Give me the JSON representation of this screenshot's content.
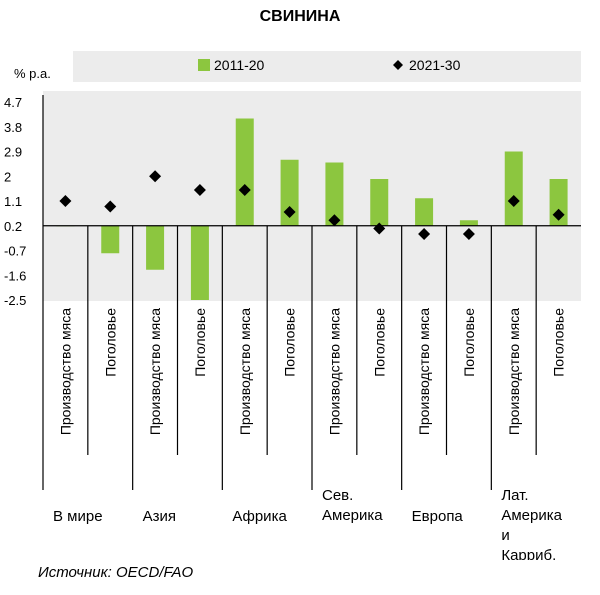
{
  "chart_data": {
    "type": "bar",
    "title": "СВИНИНА",
    "ylabel": "% p.a.",
    "ylim": [
      -2.5,
      4.7
    ],
    "yticks": [
      "4.7",
      "3.8",
      "2.9",
      "2",
      "1.1",
      "0.2",
      "-0.7",
      "-1.6",
      "-2.5"
    ],
    "grid": false,
    "legend_position": "top",
    "groups": [
      "В мире",
      "Азия",
      "Африка",
      "Сев. Америка",
      "Европа",
      "Лат. Америка и Карриб. бассейн"
    ],
    "categories": [
      "Производство мяса",
      "Поголовье",
      "Производство мяса",
      "Поголовье",
      "Производство мяса",
      "Поголовье",
      "Производство мяса",
      "Поголовье",
      "Производство мяса",
      "Поголовье",
      "Производство мяса",
      "Поголовье"
    ],
    "series": [
      {
        "name": "2011-20",
        "type": "bar",
        "color": "#8cc63f",
        "values": [
          0.2,
          -0.8,
          -1.4,
          -2.5,
          4.1,
          2.6,
          2.5,
          1.9,
          1.2,
          0.4,
          2.9,
          1.9
        ]
      },
      {
        "name": "2021-30",
        "type": "marker",
        "color": "#000000",
        "values": [
          1.1,
          0.9,
          2.0,
          1.5,
          1.5,
          0.7,
          0.4,
          0.1,
          -0.1,
          -0.1,
          1.1,
          0.6
        ]
      }
    ]
  },
  "source": "Источник: OECD/FAO"
}
